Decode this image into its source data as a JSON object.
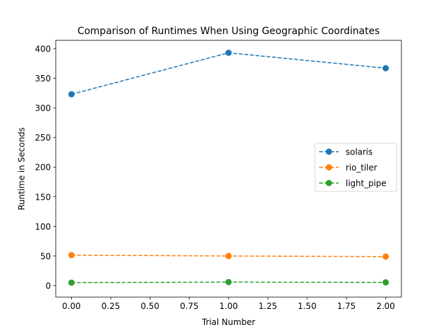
{
  "chart_data": {
    "type": "line",
    "title": "Comparison of Runtimes When Using Geographic Coordinates",
    "xlabel": "Trial Number",
    "ylabel": "Runtime in Seconds",
    "x": [
      0,
      1,
      2
    ],
    "xlim": [
      -0.1,
      2.1
    ],
    "ylim": [
      -19.4,
      414.0
    ],
    "xticks": [
      0.0,
      0.25,
      0.5,
      0.75,
      1.0,
      1.25,
      1.5,
      1.75,
      2.0
    ],
    "xtick_labels": [
      "0.00",
      "0.25",
      "0.50",
      "0.75",
      "1.00",
      "1.25",
      "1.50",
      "1.75",
      "2.00"
    ],
    "yticks": [
      0,
      50,
      100,
      150,
      200,
      250,
      300,
      350,
      400
    ],
    "ytick_labels": [
      "0",
      "50",
      "100",
      "150",
      "200",
      "250",
      "300",
      "350",
      "400"
    ],
    "grid": false,
    "legend_position": "center-right",
    "line_style": "dashed",
    "marker": "circle",
    "series": [
      {
        "name": "solaris",
        "color": "#1f77b4",
        "values": [
          323,
          393,
          367
        ]
      },
      {
        "name": "rio_tiler",
        "color": "#ff7f0e",
        "values": [
          51.5,
          50,
          49
        ]
      },
      {
        "name": "light_pipe",
        "color": "#2ca02c",
        "values": [
          5,
          6,
          5.5
        ]
      }
    ]
  }
}
